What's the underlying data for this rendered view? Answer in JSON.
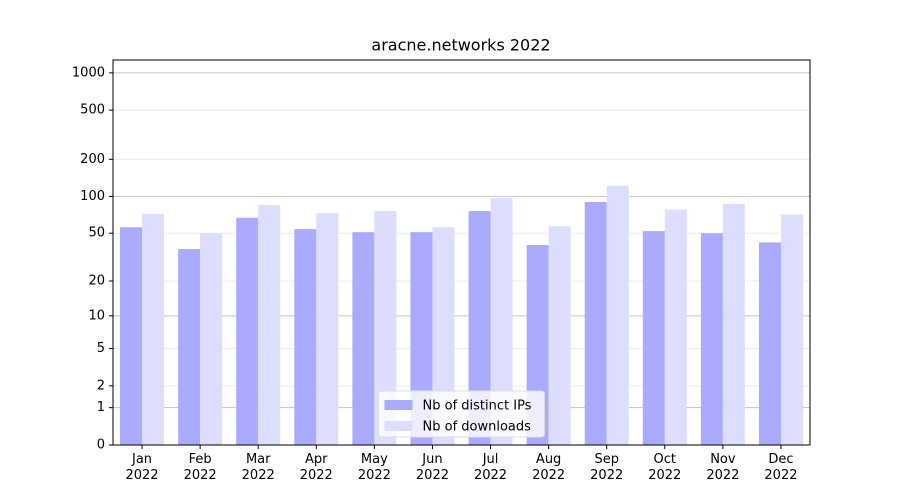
{
  "chart_data": {
    "type": "bar",
    "title": "aracne.networks 2022",
    "categories": [
      "Jan 2022",
      "Feb 2022",
      "Mar 2022",
      "Apr 2022",
      "May 2022",
      "Jun 2022",
      "Jul 2022",
      "Aug 2022",
      "Sep 2022",
      "Oct 2022",
      "Nov 2022",
      "Dec 2022"
    ],
    "series": [
      {
        "name": "Nb of distinct IPs",
        "color": "#aaaaff",
        "values": [
          56,
          37,
          67,
          54,
          51,
          51,
          76,
          40,
          90,
          52,
          50,
          42
        ]
      },
      {
        "name": "Nb of downloads",
        "color": "#ddddff",
        "values": [
          72,
          50,
          85,
          73,
          76,
          56,
          97,
          57,
          122,
          78,
          87,
          71
        ]
      }
    ],
    "yscale": "symlog",
    "ylim": [
      0,
      1270
    ],
    "yticks": [
      0,
      1,
      2,
      5,
      10,
      20,
      50,
      100,
      200,
      500,
      1000
    ],
    "grid": true,
    "legend": "lower center"
  }
}
